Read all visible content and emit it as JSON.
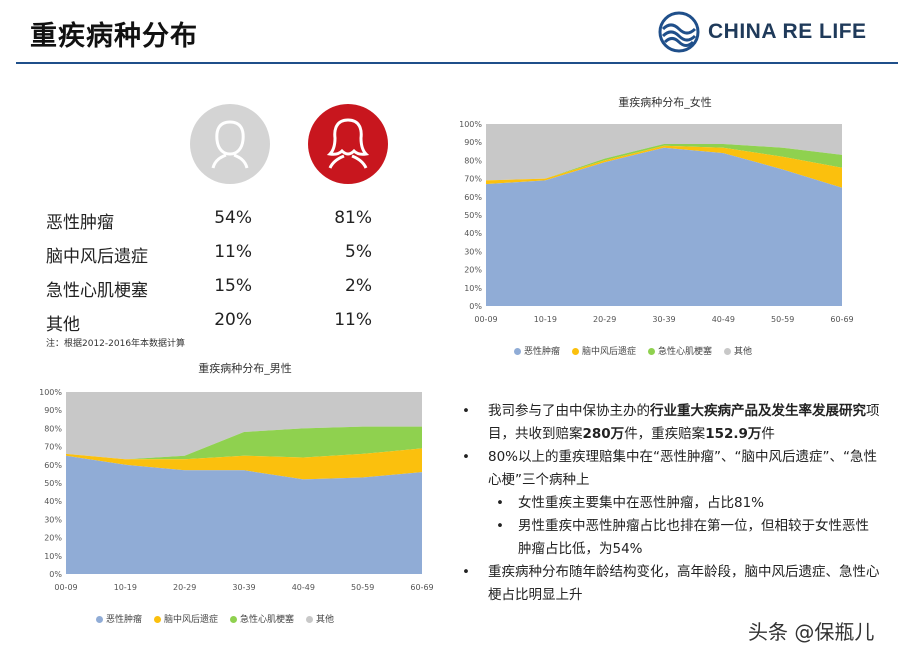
{
  "header": {
    "title": "重疾病种分布",
    "brand": "CHINA RE LIFE"
  },
  "colors": {
    "blue": "#90acd6",
    "yellow": "#fbc00d",
    "green": "#8fd14f",
    "gray": "#c8c8c8",
    "red": "#c8161e",
    "rule": "#1f4f8a"
  },
  "summary": {
    "rows": [
      {
        "label": "恶性肿瘤",
        "male": "54%",
        "female": "81%"
      },
      {
        "label": "脑中风后遗症",
        "male": "11%",
        "female": "5%"
      },
      {
        "label": "急性心肌梗塞",
        "male": "15%",
        "female": "2%"
      },
      {
        "label": "其他",
        "male": "20%",
        "female": "11%"
      }
    ],
    "note": "注：根据2012-2016年本数据计算"
  },
  "chart_data": [
    {
      "type": "area",
      "title": "重疾病种分布_女性",
      "categories": [
        "00-09",
        "10-19",
        "20-29",
        "30-39",
        "40-49",
        "50-59",
        "60-69"
      ],
      "y_ticks": [
        "0%",
        "10%",
        "20%",
        "30%",
        "40%",
        "50%",
        "60%",
        "70%",
        "80%",
        "90%",
        "100%"
      ],
      "ylim": [
        0,
        100
      ],
      "stacked_100": true,
      "legend": [
        "恶性肿瘤",
        "脑中风后遗症",
        "急性心肌梗塞",
        "其他"
      ],
      "series": [
        {
          "name": "恶性肿瘤",
          "values": [
            67,
            69,
            79,
            87,
            84,
            75,
            65
          ]
        },
        {
          "name": "脑中风后遗症",
          "values": [
            2,
            1,
            1,
            1,
            3,
            7,
            11
          ]
        },
        {
          "name": "急性心肌梗塞",
          "values": [
            0,
            0,
            1,
            1,
            2,
            5,
            7
          ]
        },
        {
          "name": "其他",
          "values": [
            31,
            30,
            19,
            11,
            11,
            13,
            17
          ]
        }
      ]
    },
    {
      "type": "area",
      "title": "重疾病种分布_男性",
      "categories": [
        "00-09",
        "10-19",
        "20-29",
        "30-39",
        "40-49",
        "50-59",
        "60-69"
      ],
      "y_ticks": [
        "0%",
        "10%",
        "20%",
        "30%",
        "40%",
        "50%",
        "60%",
        "70%",
        "80%",
        "90%",
        "100%"
      ],
      "ylim": [
        0,
        100
      ],
      "stacked_100": true,
      "legend": [
        "恶性肿瘤",
        "脑中风后遗症",
        "急性心肌梗塞",
        "其他"
      ],
      "series": [
        {
          "name": "恶性肿瘤",
          "values": [
            65,
            60,
            57,
            57,
            52,
            53,
            56
          ]
        },
        {
          "name": "脑中风后遗症",
          "values": [
            1,
            3,
            6,
            8,
            12,
            13,
            13
          ]
        },
        {
          "name": "急性心肌梗塞",
          "values": [
            0,
            0,
            2,
            13,
            16,
            15,
            12
          ]
        },
        {
          "name": "其他",
          "values": [
            34,
            37,
            35,
            22,
            20,
            19,
            19
          ]
        }
      ]
    }
  ],
  "bullets": [
    {
      "level": 1,
      "parts": [
        {
          "t": "我司参与了由中保协主办的",
          "b": false
        },
        {
          "t": "行业重大疾病产品及发生率发展研究",
          "b": true
        },
        {
          "t": "项目，共收到赔案",
          "b": false
        },
        {
          "t": "280万",
          "b": true
        },
        {
          "t": "件，重疾赔案",
          "b": false
        },
        {
          "t": "152.9万",
          "b": true
        },
        {
          "t": "件",
          "b": false
        }
      ]
    },
    {
      "level": 1,
      "parts": [
        {
          "t": "80%以上的重疾理赔集中在“恶性肿瘤”、“脑中风后遗症”、“急性心梗”三个病种上",
          "b": false
        }
      ]
    },
    {
      "level": 2,
      "parts": [
        {
          "t": "女性重疾主要集中在恶性肿瘤，占比81%",
          "b": false
        }
      ]
    },
    {
      "level": 2,
      "parts": [
        {
          "t": "男性重疾中恶性肿瘤占比也排在第一位，但相较于女性恶性肿瘤占比低，为54%",
          "b": false
        }
      ]
    },
    {
      "level": 1,
      "parts": [
        {
          "t": "重疾病种分布随年龄结构变化，高年龄段，脑中风后遗症、急性心梗占比明显上升",
          "b": false
        }
      ]
    }
  ],
  "watermark": "头条 @保瓶儿"
}
